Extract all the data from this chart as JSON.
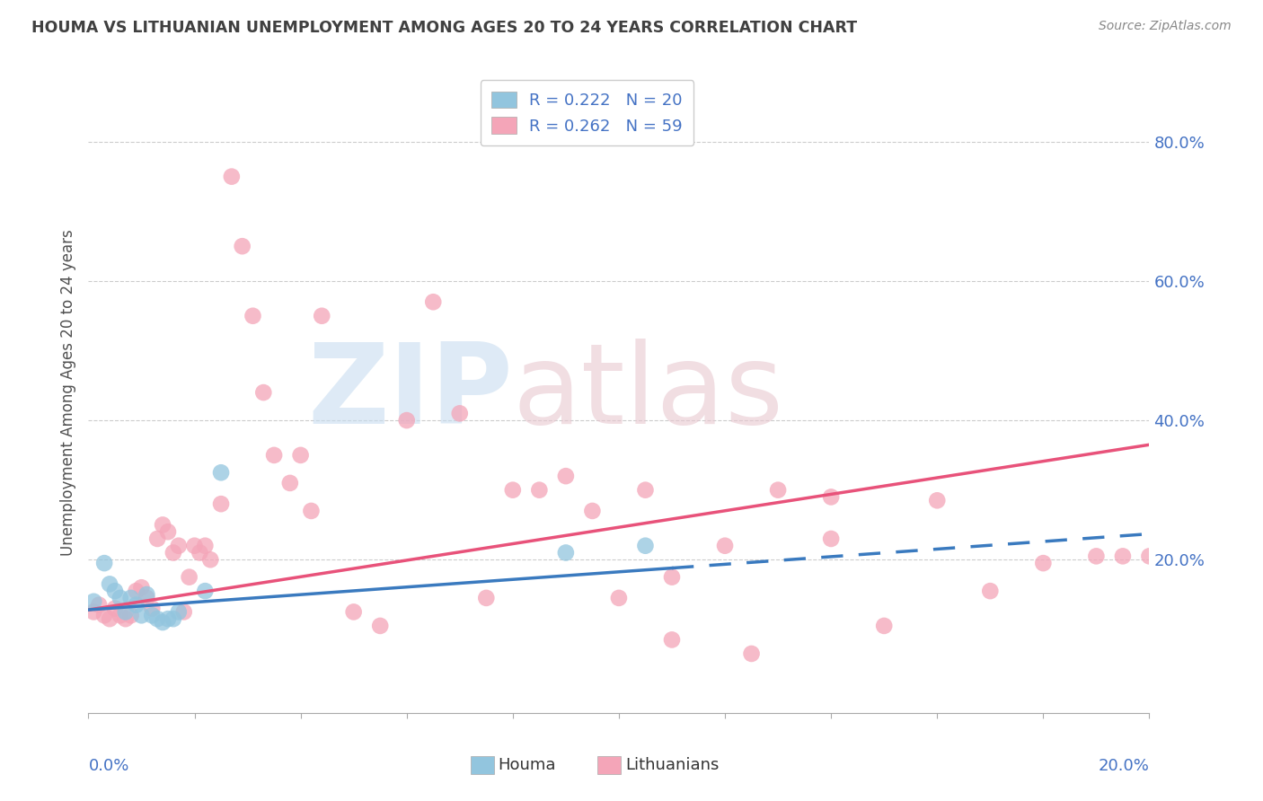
{
  "title": "HOUMA VS LITHUANIAN UNEMPLOYMENT AMONG AGES 20 TO 24 YEARS CORRELATION CHART",
  "source": "Source: ZipAtlas.com",
  "ylabel": "Unemployment Among Ages 20 to 24 years",
  "houma_color": "#92c5de",
  "lith_color": "#f4a5b8",
  "houma_line_color": "#3a7abf",
  "lith_line_color": "#e8527a",
  "text_color_blue": "#4472c4",
  "title_color": "#404040",
  "source_color": "#888888",
  "watermark_zip_color": "#c8ddf0",
  "watermark_atlas_color": "#e8c8d0",
  "xlim": [
    0.0,
    0.2
  ],
  "ylim": [
    -0.02,
    0.9
  ],
  "right_ytick_vals": [
    0.8,
    0.6,
    0.4,
    0.2
  ],
  "houma_x": [
    0.001,
    0.003,
    0.004,
    0.005,
    0.006,
    0.007,
    0.008,
    0.009,
    0.01,
    0.011,
    0.012,
    0.013,
    0.014,
    0.015,
    0.016,
    0.017,
    0.022,
    0.025,
    0.09,
    0.105
  ],
  "houma_y": [
    0.14,
    0.195,
    0.165,
    0.155,
    0.145,
    0.125,
    0.145,
    0.135,
    0.12,
    0.15,
    0.12,
    0.115,
    0.11,
    0.115,
    0.115,
    0.125,
    0.155,
    0.325,
    0.21,
    0.22
  ],
  "lith_x": [
    0.001,
    0.002,
    0.003,
    0.004,
    0.005,
    0.006,
    0.007,
    0.008,
    0.009,
    0.01,
    0.011,
    0.012,
    0.013,
    0.014,
    0.015,
    0.016,
    0.017,
    0.018,
    0.019,
    0.02,
    0.021,
    0.022,
    0.023,
    0.025,
    0.027,
    0.029,
    0.031,
    0.033,
    0.035,
    0.038,
    0.04,
    0.042,
    0.044,
    0.05,
    0.055,
    0.06,
    0.065,
    0.07,
    0.075,
    0.08,
    0.085,
    0.09,
    0.095,
    0.1,
    0.105,
    0.11,
    0.12,
    0.125,
    0.13,
    0.14,
    0.15,
    0.16,
    0.17,
    0.18,
    0.19,
    0.195,
    0.2,
    0.11,
    0.14
  ],
  "lith_y": [
    0.125,
    0.135,
    0.12,
    0.115,
    0.13,
    0.12,
    0.115,
    0.12,
    0.155,
    0.16,
    0.145,
    0.13,
    0.23,
    0.25,
    0.24,
    0.21,
    0.22,
    0.125,
    0.175,
    0.22,
    0.21,
    0.22,
    0.2,
    0.28,
    0.75,
    0.65,
    0.55,
    0.44,
    0.35,
    0.31,
    0.35,
    0.27,
    0.55,
    0.125,
    0.105,
    0.4,
    0.57,
    0.41,
    0.145,
    0.3,
    0.3,
    0.32,
    0.27,
    0.145,
    0.3,
    0.085,
    0.22,
    0.065,
    0.3,
    0.23,
    0.105,
    0.285,
    0.155,
    0.195,
    0.205,
    0.205,
    0.205,
    0.175,
    0.29
  ],
  "houma_line_x0": 0.0,
  "houma_line_y0": 0.128,
  "houma_line_x1": 0.2,
  "houma_line_y1": 0.237,
  "lith_line_x0": 0.0,
  "lith_line_y0": 0.128,
  "lith_line_x1": 0.2,
  "lith_line_y1": 0.365
}
